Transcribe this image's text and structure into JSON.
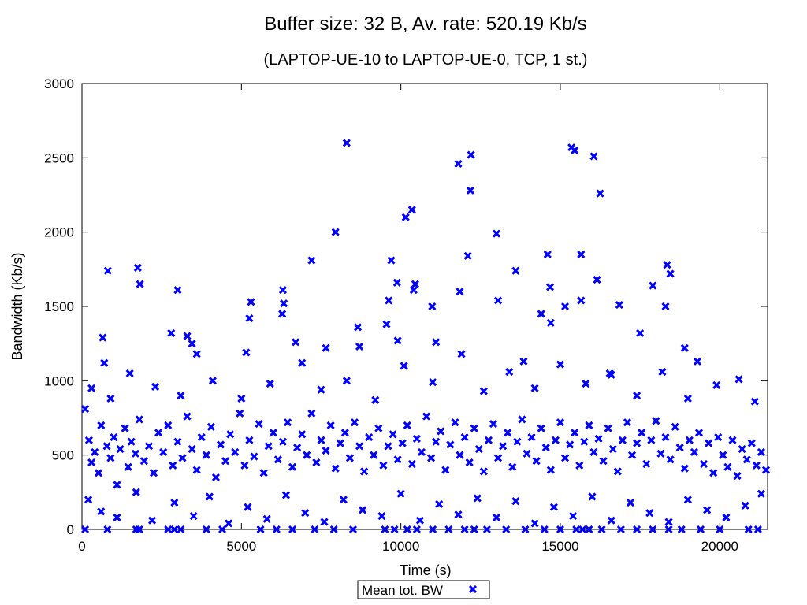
{
  "chart_data": {
    "type": "scatter",
    "title": "Buffer size: 32 B, Av. rate: 520.19 Kb/s",
    "subtitle": "(LAPTOP-UE-10 to LAPTOP-UE-0, TCP, 1 st.)",
    "xlabel": "Time (s)",
    "ylabel": "Bandwidth (Kb/s)",
    "xlim": [
      0,
      21500
    ],
    "ylim": [
      0,
      3000
    ],
    "xticks": [
      0,
      5000,
      10000,
      15000,
      20000
    ],
    "yticks": [
      0,
      500,
      1000,
      1500,
      2000,
      2500,
      3000
    ],
    "grid": false,
    "legend_position": "bottom-center",
    "series": [
      {
        "name": "Mean tot. BW",
        "color": "#0000ff",
        "marker": "x",
        "points": [
          [
            810,
            1740
          ],
          [
            1750,
            1760
          ],
          [
            1820,
            1650
          ],
          [
            3000,
            1610
          ],
          [
            5300,
            1530
          ],
          [
            5250,
            1420
          ],
          [
            6300,
            1610
          ],
          [
            6330,
            1520
          ],
          [
            6280,
            1450
          ],
          [
            7200,
            1810
          ],
          [
            7950,
            2000
          ],
          [
            8300,
            2600
          ],
          [
            9700,
            1810
          ],
          [
            9880,
            1660
          ],
          [
            10150,
            2100
          ],
          [
            10350,
            2150
          ],
          [
            10450,
            1650
          ],
          [
            10400,
            1610
          ],
          [
            11800,
            2460
          ],
          [
            11850,
            1600
          ],
          [
            12100,
            1840
          ],
          [
            12200,
            2520
          ],
          [
            12180,
            2280
          ],
          [
            13000,
            1990
          ],
          [
            13050,
            1540
          ],
          [
            13600,
            1740
          ],
          [
            14600,
            1850
          ],
          [
            14680,
            1630
          ],
          [
            15350,
            2570
          ],
          [
            15450,
            2550
          ],
          [
            15650,
            1850
          ],
          [
            15650,
            1540
          ],
          [
            16050,
            2510
          ],
          [
            16250,
            2260
          ],
          [
            16150,
            1680
          ],
          [
            16850,
            1510
          ],
          [
            17900,
            1640
          ],
          [
            18300,
            1500
          ],
          [
            18350,
            1780
          ],
          [
            18450,
            1720
          ],
          [
            18900,
            1220
          ],
          [
            19300,
            1130
          ],
          [
            650,
            1290
          ],
          [
            700,
            1120
          ],
          [
            2800,
            1320
          ],
          [
            3300,
            1300
          ],
          [
            3450,
            1250
          ],
          [
            6700,
            1260
          ],
          [
            8650,
            1360
          ],
          [
            8700,
            1230
          ],
          [
            9550,
            1380
          ],
          [
            9620,
            1540
          ],
          [
            9900,
            1270
          ],
          [
            10980,
            1500
          ],
          [
            11100,
            1260
          ],
          [
            13850,
            1130
          ],
          [
            14400,
            1450
          ],
          [
            14700,
            1390
          ],
          [
            15150,
            1500
          ],
          [
            17500,
            1320
          ],
          [
            16550,
            1050
          ],
          [
            5150,
            1190
          ],
          [
            3600,
            1180
          ],
          [
            7650,
            1220
          ],
          [
            100,
            810
          ],
          [
            220,
            600
          ],
          [
            300,
            450
          ],
          [
            400,
            520
          ],
          [
            520,
            380
          ],
          [
            600,
            700
          ],
          [
            780,
            560
          ],
          [
            900,
            480
          ],
          [
            1000,
            620
          ],
          [
            1100,
            300
          ],
          [
            1200,
            540
          ],
          [
            1350,
            680
          ],
          [
            1450,
            420
          ],
          [
            1550,
            590
          ],
          [
            1680,
            510
          ],
          [
            1800,
            740
          ],
          [
            1950,
            460
          ],
          [
            2100,
            560
          ],
          [
            2250,
            380
          ],
          [
            2400,
            650
          ],
          [
            2550,
            520
          ],
          [
            2700,
            700
          ],
          [
            2850,
            430
          ],
          [
            3000,
            590
          ],
          [
            3150,
            480
          ],
          [
            3300,
            760
          ],
          [
            3450,
            540
          ],
          [
            3600,
            400
          ],
          [
            3750,
            620
          ],
          [
            3900,
            500
          ],
          [
            4050,
            690
          ],
          [
            4200,
            350
          ],
          [
            4350,
            570
          ],
          [
            4500,
            460
          ],
          [
            4650,
            640
          ],
          [
            4800,
            520
          ],
          [
            4950,
            780
          ],
          [
            5100,
            430
          ],
          [
            5250,
            600
          ],
          [
            5400,
            490
          ],
          [
            5550,
            710
          ],
          [
            5700,
            380
          ],
          [
            5850,
            560
          ],
          [
            6000,
            650
          ],
          [
            6150,
            470
          ],
          [
            6300,
            590
          ],
          [
            6450,
            720
          ],
          [
            6600,
            420
          ],
          [
            6750,
            550
          ],
          [
            6900,
            640
          ],
          [
            7050,
            500
          ],
          [
            7200,
            780
          ],
          [
            7350,
            450
          ],
          [
            7500,
            600
          ],
          [
            7650,
            530
          ],
          [
            7800,
            700
          ],
          [
            7950,
            410
          ],
          [
            8100,
            580
          ],
          [
            8250,
            650
          ],
          [
            8400,
            480
          ],
          [
            8550,
            720
          ],
          [
            8700,
            560
          ],
          [
            8850,
            390
          ],
          [
            9000,
            620
          ],
          [
            9150,
            500
          ],
          [
            9300,
            680
          ],
          [
            9450,
            430
          ],
          [
            9600,
            560
          ],
          [
            9750,
            640
          ],
          [
            9900,
            470
          ],
          [
            10050,
            580
          ],
          [
            10200,
            700
          ],
          [
            10350,
            440
          ],
          [
            10500,
            610
          ],
          [
            10650,
            520
          ],
          [
            10800,
            760
          ],
          [
            10950,
            480
          ],
          [
            11100,
            590
          ],
          [
            11250,
            660
          ],
          [
            11400,
            400
          ],
          [
            11550,
            570
          ],
          [
            11700,
            720
          ],
          [
            11850,
            500
          ],
          [
            12000,
            620
          ],
          [
            12150,
            450
          ],
          [
            12300,
            680
          ],
          [
            12450,
            540
          ],
          [
            12600,
            390
          ],
          [
            12750,
            600
          ],
          [
            12900,
            710
          ],
          [
            13050,
            480
          ],
          [
            13200,
            560
          ],
          [
            13350,
            650
          ],
          [
            13500,
            420
          ],
          [
            13650,
            590
          ],
          [
            13800,
            740
          ],
          [
            13950,
            510
          ],
          [
            14100,
            620
          ],
          [
            14250,
            460
          ],
          [
            14400,
            680
          ],
          [
            14550,
            550
          ],
          [
            14700,
            400
          ],
          [
            14850,
            600
          ],
          [
            15000,
            720
          ],
          [
            15150,
            480
          ],
          [
            15300,
            570
          ],
          [
            15450,
            650
          ],
          [
            15600,
            430
          ],
          [
            15750,
            590
          ],
          [
            15900,
            700
          ],
          [
            16050,
            520
          ],
          [
            16200,
            610
          ],
          [
            16350,
            460
          ],
          [
            16500,
            680
          ],
          [
            16650,
            540
          ],
          [
            16800,
            390
          ],
          [
            16950,
            600
          ],
          [
            17100,
            720
          ],
          [
            17250,
            500
          ],
          [
            17400,
            580
          ],
          [
            17550,
            650
          ],
          [
            17700,
            440
          ],
          [
            17850,
            600
          ],
          [
            18000,
            730
          ],
          [
            18150,
            510
          ],
          [
            18300,
            620
          ],
          [
            18450,
            470
          ],
          [
            18600,
            690
          ],
          [
            18750,
            550
          ],
          [
            18900,
            410
          ],
          [
            19050,
            600
          ],
          [
            19200,
            520
          ],
          [
            19350,
            650
          ],
          [
            19500,
            440
          ],
          [
            19650,
            580
          ],
          [
            19800,
            380
          ],
          [
            19950,
            620
          ],
          [
            20100,
            500
          ],
          [
            20250,
            420
          ],
          [
            20400,
            600
          ],
          [
            20550,
            360
          ],
          [
            20700,
            540
          ],
          [
            20850,
            470
          ],
          [
            21000,
            580
          ],
          [
            21150,
            430
          ],
          [
            21300,
            520
          ],
          [
            21450,
            400
          ],
          [
            300,
            950
          ],
          [
            900,
            880
          ],
          [
            1500,
            1050
          ],
          [
            2300,
            960
          ],
          [
            3100,
            900
          ],
          [
            4100,
            1000
          ],
          [
            5000,
            880
          ],
          [
            5900,
            980
          ],
          [
            6900,
            1120
          ],
          [
            7500,
            940
          ],
          [
            8300,
            1000
          ],
          [
            9200,
            870
          ],
          [
            10100,
            1100
          ],
          [
            11000,
            990
          ],
          [
            11900,
            1180
          ],
          [
            12600,
            930
          ],
          [
            13400,
            1060
          ],
          [
            14200,
            950
          ],
          [
            15000,
            1110
          ],
          [
            15800,
            980
          ],
          [
            16600,
            1040
          ],
          [
            17400,
            900
          ],
          [
            18200,
            1060
          ],
          [
            19000,
            880
          ],
          [
            19900,
            970
          ],
          [
            20600,
            1010
          ],
          [
            21100,
            860
          ],
          [
            200,
            200
          ],
          [
            600,
            120
          ],
          [
            1100,
            80
          ],
          [
            1700,
            250
          ],
          [
            2200,
            60
          ],
          [
            2900,
            180
          ],
          [
            3500,
            90
          ],
          [
            4000,
            220
          ],
          [
            4600,
            40
          ],
          [
            5200,
            150
          ],
          [
            5800,
            70
          ],
          [
            6400,
            230
          ],
          [
            7000,
            110
          ],
          [
            7600,
            50
          ],
          [
            8200,
            200
          ],
          [
            8800,
            130
          ],
          [
            9400,
            90
          ],
          [
            10000,
            240
          ],
          [
            10600,
            60
          ],
          [
            11200,
            170
          ],
          [
            11800,
            100
          ],
          [
            12400,
            210
          ],
          [
            13000,
            80
          ],
          [
            13600,
            190
          ],
          [
            14200,
            40
          ],
          [
            14800,
            150
          ],
          [
            15400,
            90
          ],
          [
            16000,
            220
          ],
          [
            16600,
            60
          ],
          [
            17200,
            180
          ],
          [
            17800,
            110
          ],
          [
            18400,
            50
          ],
          [
            19000,
            200
          ],
          [
            19600,
            130
          ],
          [
            20200,
            80
          ],
          [
            20800,
            160
          ],
          [
            21300,
            240
          ],
          [
            100,
            0
          ],
          [
            800,
            0
          ],
          [
            1700,
            0
          ],
          [
            1800,
            0
          ],
          [
            2700,
            0
          ],
          [
            2900,
            0
          ],
          [
            3100,
            0
          ],
          [
            3900,
            0
          ],
          [
            4400,
            0
          ],
          [
            5600,
            0
          ],
          [
            6100,
            0
          ],
          [
            6600,
            0
          ],
          [
            7300,
            0
          ],
          [
            7900,
            0
          ],
          [
            8500,
            0
          ],
          [
            9500,
            0
          ],
          [
            9800,
            0
          ],
          [
            10200,
            0
          ],
          [
            10500,
            0
          ],
          [
            11000,
            0
          ],
          [
            11500,
            0
          ],
          [
            12000,
            0
          ],
          [
            12300,
            0
          ],
          [
            12700,
            0
          ],
          [
            13300,
            0
          ],
          [
            13900,
            0
          ],
          [
            14500,
            0
          ],
          [
            15000,
            0
          ],
          [
            15500,
            0
          ],
          [
            15700,
            0
          ],
          [
            15900,
            0
          ],
          [
            16300,
            0
          ],
          [
            16900,
            0
          ],
          [
            17400,
            0
          ],
          [
            17900,
            0
          ],
          [
            18400,
            0
          ],
          [
            18800,
            0
          ],
          [
            19400,
            0
          ],
          [
            20000,
            0
          ],
          [
            20900,
            0
          ],
          [
            21200,
            0
          ]
        ]
      }
    ]
  }
}
